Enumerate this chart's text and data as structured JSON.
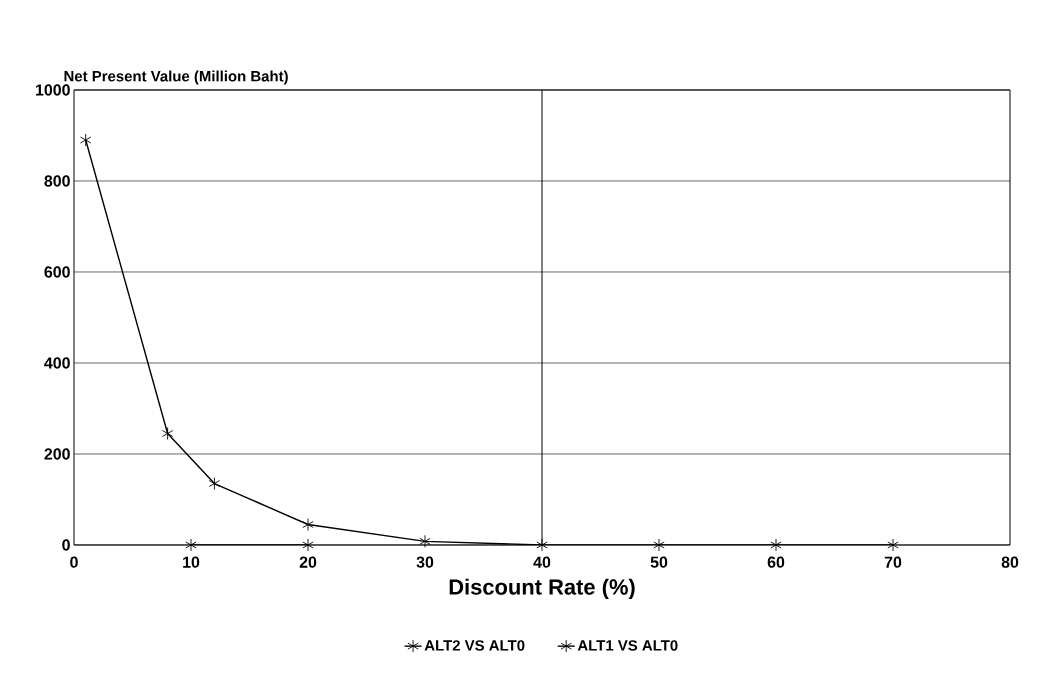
{
  "chart_data": {
    "type": "line",
    "ylabel": "Net Present Value (Million Baht)",
    "xlabel": "Discount Rate (%)",
    "xlim": [
      0,
      80
    ],
    "xticks": [
      0,
      10,
      20,
      30,
      40,
      50,
      60,
      70,
      80
    ],
    "ylim": [
      0,
      1000
    ],
    "yticks": [
      0,
      200,
      400,
      600,
      800,
      1000
    ],
    "grid": "y",
    "legend": "bottom",
    "ref_lines": [
      {
        "axis": "x",
        "value": 40,
        "color": "#000000"
      }
    ],
    "series": [
      {
        "name": "ALT2 VS ALT0",
        "color": "#000000",
        "marker": "cross",
        "x": [
          10,
          20
        ],
        "values": [
          0,
          0
        ]
      },
      {
        "name": "ALT1 VS ALT0",
        "color": "#000000",
        "marker": "cross",
        "x": [
          1,
          8,
          12,
          20,
          30,
          40,
          50,
          60,
          70
        ],
        "values": [
          890,
          245,
          135,
          45,
          8,
          0,
          0,
          0,
          0
        ]
      }
    ]
  }
}
